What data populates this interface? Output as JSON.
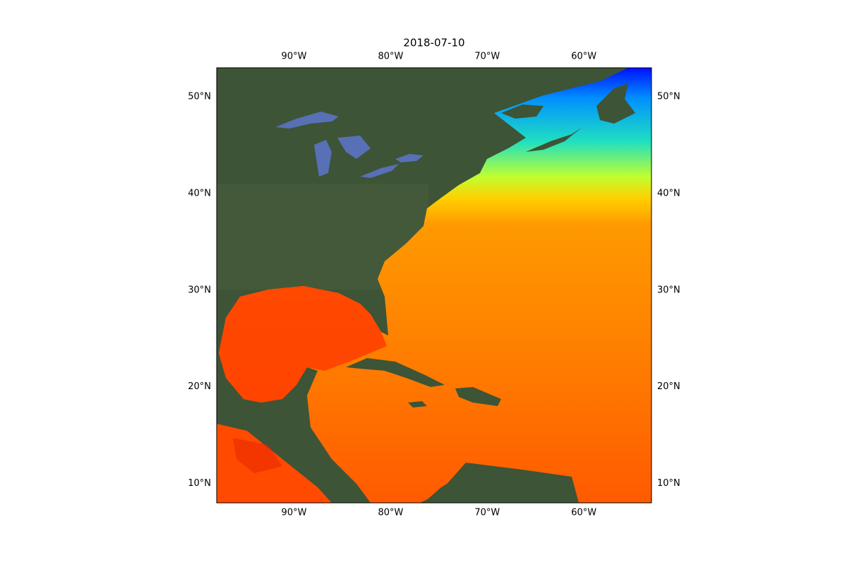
{
  "chart_data": {
    "type": "map",
    "title": "2018-07-10",
    "xlim": [
      -98,
      -53
    ],
    "ylim": [
      8,
      53
    ],
    "xticks": [
      {
        "value": -90,
        "label": "90°W"
      },
      {
        "value": -80,
        "label": "80°W"
      },
      {
        "value": -70,
        "label": "70°W"
      },
      {
        "value": -60,
        "label": "60°W"
      }
    ],
    "yticks": [
      {
        "value": 10,
        "label": "10°N"
      },
      {
        "value": 20,
        "label": "20°N"
      },
      {
        "value": 30,
        "label": "30°N"
      },
      {
        "value": 40,
        "label": "40°N"
      },
      {
        "value": 50,
        "label": "50°N"
      }
    ]
  }
}
